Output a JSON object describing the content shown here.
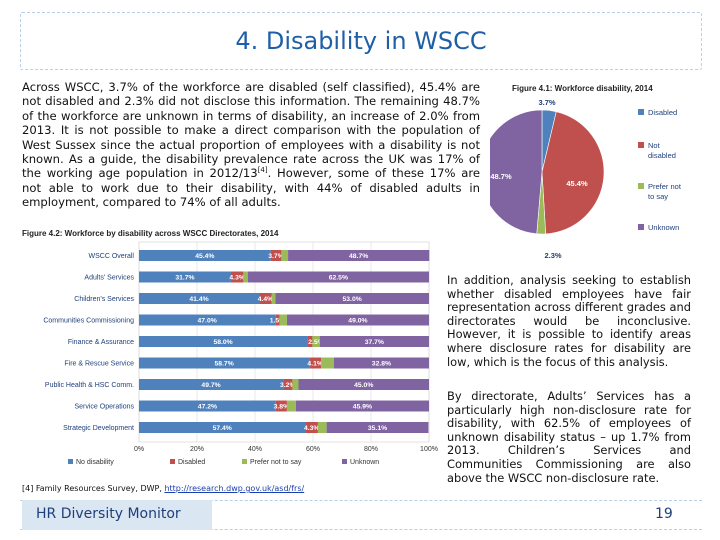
{
  "slide": {
    "title": "4. Disability in WSCC",
    "para_1": "Across WSCC, 3.7% of the workforce are disabled (self classified), 45.4% are not disabled and 2.3% did not disclose this information. The remaining 48.7% of the workforce are unknown in terms of disability, an increase of 2.0% from 2013. It is not possible to make a direct comparison with the population of West Sussex since the actual proportion of employees with a disability is not known. As a guide, the disability prevalence rate across the UK was 17% of the working age population in 2012/13",
    "para_1_ref": "[4]",
    "para_1_end": ". However, some of these 17% are not able to work due to their disability, with 44% of disabled adults in employment, compared to 74% of all adults.",
    "para_2": "In addition, analysis seeking to establish whether disabled employees have fair representation across different grades and directorates would be inconclusive. However, it is possible to identify areas where disclosure rates for disability are low, which is the focus of this analysis.",
    "para_3": "By directorate, Adults’ Services has a particularly high non-disclosure rate for disability, with 62.5% of employees of unknown disability status – up 1.7% from 2013. Children’s Services and Communities Commissioning are also above the WSCC non-disclosure rate.",
    "footnote_text": "[4] Family Resources Survey, DWP, ",
    "footnote_link": "http://research.dwp.gov.uk/asd/frs/",
    "footer_left": "HR Diversity Monitor",
    "page_number": "19"
  },
  "chart_data": [
    {
      "type": "pie",
      "title": "Figure 4.1: Workforce disability, 2014",
      "labels": [
        "Disabled",
        "Not disabled",
        "Prefer not to say",
        "Unknown"
      ],
      "values": [
        3.7,
        45.4,
        2.3,
        48.7
      ],
      "value_labels": [
        "3.7%",
        "45.4%",
        "2.3%",
        "48.7%"
      ],
      "colors": [
        "#4f81bd",
        "#c0504d",
        "#9bbb59",
        "#8064a2"
      ],
      "legend": "right"
    },
    {
      "type": "bar",
      "stacked": true,
      "orientation": "horizontal",
      "title": "Figure 4.2: Workforce by disability across WSCC Directorates, 2014",
      "categories": [
        "WSCC Overall",
        "Adults' Services",
        "Children's Services",
        "Communities Commissioning",
        "Finance & Assurance",
        "Fire & Rescue Service",
        "Public Health & HSC Comm.",
        "Service Operations",
        "Strategic Development"
      ],
      "series": [
        {
          "name": "No disability",
          "color": "#4f81bd",
          "values": [
            45.4,
            31.7,
            41.4,
            47.0,
            58.0,
            58.7,
            49.7,
            47.2,
            57.4
          ],
          "labels": [
            "45.4%",
            "31.7%",
            "41.4%",
            "47.0%",
            "58.0%",
            "58.7%",
            "49.7%",
            "47.2%",
            "57.4%"
          ]
        },
        {
          "name": "Disabled",
          "color": "#c0504d",
          "values": [
            3.7,
            4.3,
            4.4,
            1.5,
            1.8,
            4.1,
            3.2,
            3.8,
            4.3
          ],
          "labels": [
            "3.7%",
            "4.3%",
            "4.4%",
            "1.5%",
            "",
            "4.1%",
            "3.2%",
            "3.8%",
            "4.3%"
          ]
        },
        {
          "name": "Prefer not to say",
          "color": "#9bbb59",
          "values": [
            2.3,
            1.5,
            1.2,
            2.5,
            2.5,
            4.4,
            2.1,
            3.1,
            3.0
          ],
          "labels": [
            "",
            "",
            "",
            "",
            "2.5%",
            "",
            "",
            "",
            ""
          ]
        },
        {
          "name": "Unknown",
          "color": "#8064a2",
          "values": [
            48.7,
            62.5,
            53.0,
            49.0,
            37.7,
            32.8,
            45.0,
            45.9,
            35.1
          ],
          "labels": [
            "48.7%",
            "62.5%",
            "53.0%",
            "49.0%",
            "37.7%",
            "32.8%",
            "45.0%",
            "45.9%",
            "35.1%"
          ]
        }
      ],
      "xlim": [
        0,
        100
      ],
      "xticks": [
        "0%",
        "20%",
        "40%",
        "60%",
        "80%",
        "100%"
      ],
      "grid": true,
      "legend": "bottom"
    }
  ]
}
